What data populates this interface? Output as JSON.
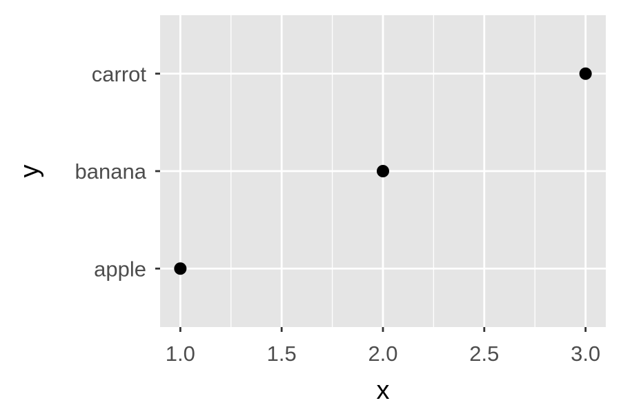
{
  "chart_data": {
    "type": "scatter",
    "x": [
      1,
      2,
      3
    ],
    "y": [
      "apple",
      "banana",
      "carrot"
    ],
    "y_categories": [
      "apple",
      "banana",
      "carrot"
    ],
    "x_ticks": [
      "1.0",
      "1.5",
      "2.0",
      "2.5",
      "3.0"
    ],
    "xlabel": "x",
    "ylabel": "y",
    "xlim": [
      0.9,
      3.1
    ],
    "grid": true,
    "colors": {
      "panel": "#e5e5e5",
      "grid": "#ffffff",
      "point": "#000000",
      "tick_text": "#4d4d4d",
      "axis_title": "#000000"
    }
  }
}
